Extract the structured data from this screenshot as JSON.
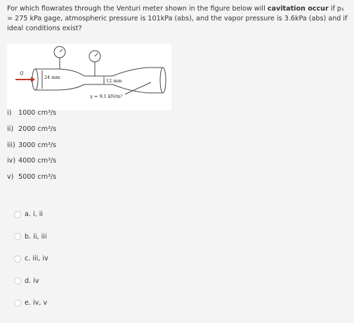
{
  "question": {
    "parts": [
      "For which flowrates through the Venturi meter shown in the figure below will ",
      "cavitation occur",
      " if p₁ = 275 kPa gage, atmospheric pressure is 101kPa (abs), and the vapor pressure is 3.6kPa (abs) and if ideal conditions exist?"
    ]
  },
  "figure": {
    "labels": [
      "Q",
      "24 mm",
      "12 mm",
      "γ = 9.1 kN/m³"
    ]
  },
  "items": [
    {
      "label": "i)",
      "text": "1000 cm³/s"
    },
    {
      "label": "ii)",
      "text": "2000 cm³/s"
    },
    {
      "label": "iii)",
      "text": "3000 cm³/s"
    },
    {
      "label": "iv)",
      "text": "4000 cm³/s"
    },
    {
      "label": "v)",
      "text": "5000 cm³/s"
    }
  ],
  "choices": [
    "a. i, ii",
    "b. ii, iii",
    "c. iii, iv",
    "d. iv",
    "e. iv, v"
  ]
}
